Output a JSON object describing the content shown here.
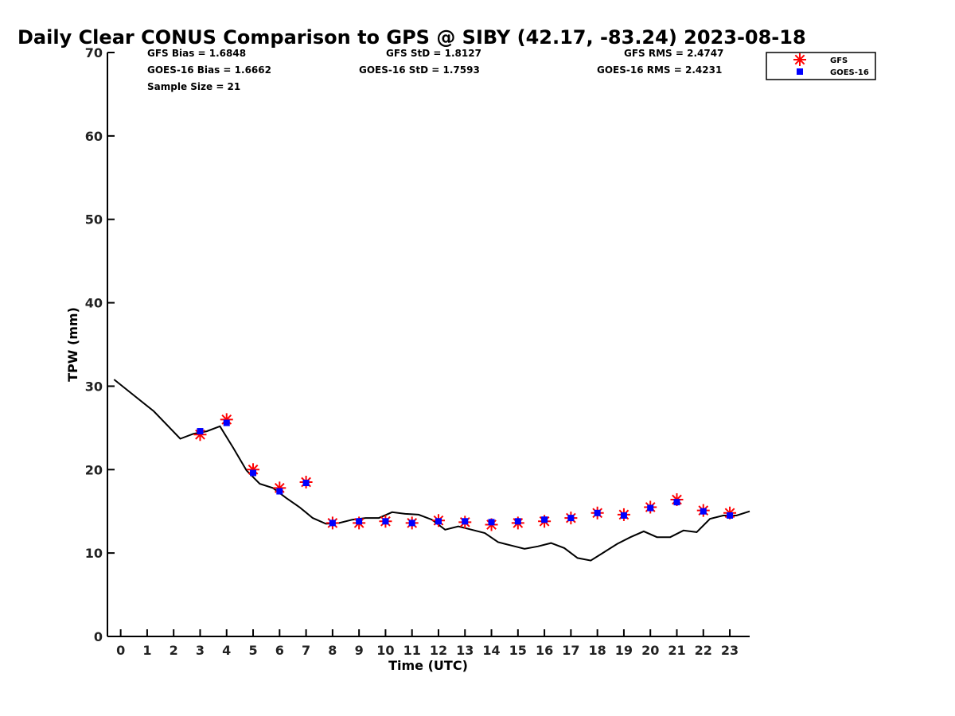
{
  "chart_data": {
    "type": "scatter",
    "title": "Daily Clear CONUS Comparison to GPS @ SIBY (42.17, -83.24) 2023-08-18",
    "xlabel": "Time (UTC)",
    "ylabel": "TPW (mm)",
    "xlim": [
      -0.5,
      23.75
    ],
    "ylim": [
      0,
      70
    ],
    "x_ticks": [
      0,
      1,
      2,
      3,
      4,
      5,
      6,
      7,
      8,
      9,
      10,
      11,
      12,
      13,
      14,
      15,
      16,
      17,
      18,
      19,
      20,
      21,
      22,
      23
    ],
    "y_ticks": [
      0,
      10,
      20,
      30,
      40,
      50,
      60,
      70
    ],
    "grid": false,
    "legend_position": "top-right",
    "stats": [
      {
        "text": "GFS Bias = 1.6848"
      },
      {
        "text": "GFS StD = 1.8127"
      },
      {
        "text": "GFS RMS = 2.4747"
      },
      {
        "text": "GOES-16 Bias = 1.6662"
      },
      {
        "text": "GOES-16 StD = 1.7593"
      },
      {
        "text": "GOES-16 RMS = 2.4231"
      },
      {
        "text": "Sample Size = 21"
      }
    ],
    "series": [
      {
        "name": "GFS",
        "marker": "asterisk",
        "color": "#ff0000",
        "x": [
          3,
          4,
          5,
          6,
          7,
          8,
          9,
          10,
          11,
          12,
          13,
          14,
          15,
          16,
          17,
          18,
          19,
          20,
          21,
          22,
          23
        ],
        "y": [
          24.2,
          26.0,
          20.0,
          17.8,
          18.5,
          13.6,
          13.6,
          13.8,
          13.6,
          13.9,
          13.7,
          13.4,
          13.6,
          13.8,
          14.2,
          14.8,
          14.6,
          15.5,
          16.4,
          15.1,
          14.8
        ]
      },
      {
        "name": "GOES-16",
        "marker": "square",
        "color": "#0000ff",
        "x": [
          3,
          4,
          5,
          6,
          7,
          8,
          9,
          10,
          11,
          12,
          13,
          14,
          15,
          16,
          17,
          18,
          19,
          20,
          21,
          22,
          23
        ],
        "y": [
          24.6,
          25.6,
          19.6,
          17.4,
          18.4,
          13.6,
          13.8,
          13.8,
          13.6,
          13.8,
          13.8,
          13.7,
          13.8,
          14.0,
          14.2,
          14.8,
          14.5,
          15.4,
          16.1,
          15.0,
          14.5
        ]
      },
      {
        "marker": "line",
        "color": "#000000",
        "x": [
          -0.25,
          0.5,
          1.25,
          2.25,
          2.75,
          3.25,
          3.75,
          4.25,
          4.75,
          5.25,
          5.75,
          6.25,
          6.75,
          7.25,
          7.75,
          8.25,
          8.75,
          9.25,
          9.75,
          10.25,
          10.75,
          11.25,
          11.75,
          12.25,
          12.75,
          13.25,
          13.75,
          14.25,
          14.75,
          15.25,
          15.75,
          16.25,
          16.75,
          17.25,
          17.75,
          18.25,
          18.75,
          19.25,
          19.75,
          20.25,
          20.75,
          21.25,
          21.75,
          22.25,
          22.75,
          23.25,
          23.75
        ],
        "y": [
          30.8,
          28.9,
          27.0,
          23.7,
          24.3,
          24.6,
          25.2,
          22.6,
          19.9,
          18.3,
          17.8,
          16.6,
          15.5,
          14.2,
          13.5,
          13.6,
          14.0,
          14.2,
          14.2,
          14.9,
          14.7,
          14.6,
          14.0,
          12.8,
          13.2,
          12.8,
          12.4,
          11.3,
          10.9,
          10.5,
          10.8,
          11.2,
          10.6,
          9.4,
          9.1,
          10.1,
          11.1,
          11.9,
          12.6,
          11.9,
          11.9,
          12.7,
          12.5,
          14.1,
          14.5,
          14.5,
          15.0
        ]
      }
    ]
  }
}
